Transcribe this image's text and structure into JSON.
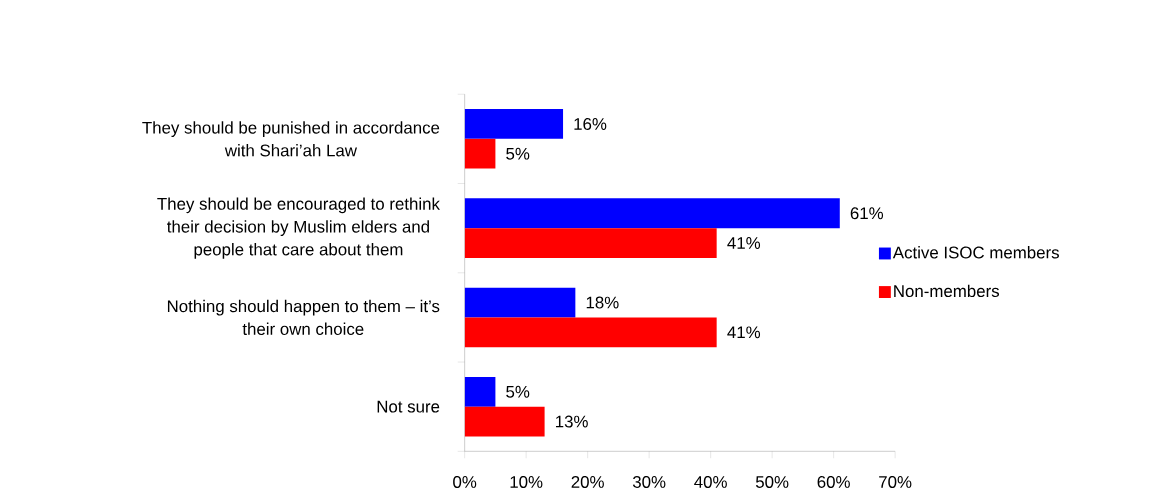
{
  "chart_data": {
    "type": "bar",
    "orientation": "horizontal",
    "categories": [
      "They should be punished in accordance with Shari’ah Law",
      "They should be encouraged to rethink their decision by Muslim elders and people that care about them",
      "Nothing should happen to them – it’s their own choice",
      "Not sure"
    ],
    "series": [
      {
        "name": "Active ISOC members",
        "color": "#0000ff",
        "values": [
          16,
          61,
          18,
          5
        ],
        "value_labels": [
          "16%",
          "61%",
          "18%",
          "5%"
        ]
      },
      {
        "name": "Non-members",
        "color": "#ff0000",
        "values": [
          5,
          41,
          41,
          13
        ],
        "value_labels": [
          "5%",
          "41%",
          "41%",
          "13%"
        ]
      }
    ],
    "xlim": [
      0,
      70
    ],
    "xticks": [
      {
        "value": 0,
        "label": "0%"
      },
      {
        "value": 10,
        "label": "10%"
      },
      {
        "value": 20,
        "label": "20%"
      },
      {
        "value": 30,
        "label": "30%"
      },
      {
        "value": 40,
        "label": "40%"
      },
      {
        "value": 50,
        "label": "50%"
      },
      {
        "value": 60,
        "label": "60%"
      },
      {
        "value": 70,
        "label": "70%"
      }
    ],
    "legend": "right"
  }
}
